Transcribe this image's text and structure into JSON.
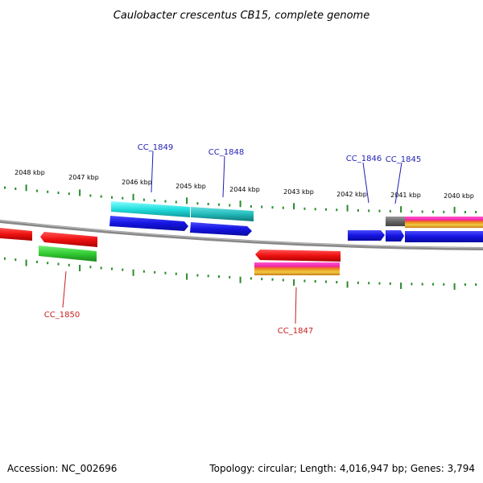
{
  "title": "Caulobacter crescentus CB15, complete genome",
  "accession_label": "Accession: NC_002696",
  "summary_label": "Topology: circular; Length: 4,016,947 bp; Genes: 3,794",
  "colors": {
    "backbone": "#888888",
    "tick": "#2a8a2a",
    "cds_fwd": "#1a1add",
    "cds_rev": "#ee1111",
    "cog_cyan": "#22dddd",
    "cog_teal": "#22bbbb",
    "cog_green": "#33cc33",
    "cog_gray": "#666666",
    "cog_magenta": "#ee22aa",
    "cog_orange": "#ee9922",
    "label_fwd": "#1f1fb4",
    "label_rev": "#c81e1e"
  },
  "kbp_labels": [
    "2048 kbp",
    "2047 kbp",
    "2046 kbp",
    "2045 kbp",
    "2044 kbp",
    "2043 kbp",
    "2042 kbp",
    "2041 kbp",
    "2040 kbp"
  ],
  "gene_labels": {
    "fwd": [
      "CC_1849",
      "CC_1848",
      "CC_1846",
      "CC_1845"
    ],
    "rev": [
      "CC_1850",
      "CC_1847"
    ]
  }
}
